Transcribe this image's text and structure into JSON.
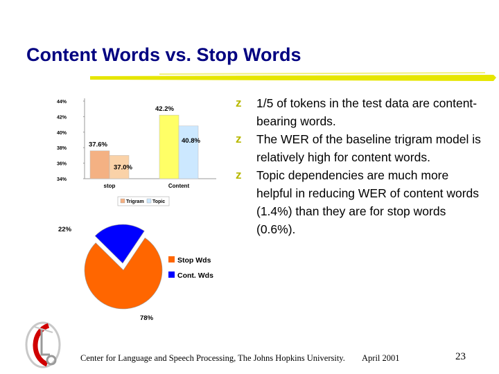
{
  "slide": {
    "title": "Content Words vs. Stop Words",
    "bullets": [
      "1/5 of tokens in the test data are content-bearing words.",
      "The WER of the baseline trigram model is relatively high for content words.",
      "Topic dependencies are much more helpful in reducing WER of content words (1.4%) than they are for stop words (0.6%)."
    ],
    "bullet_glyph": "z",
    "footer": {
      "center": "Center for Language and Speech Processing, The Johns Hopkins University.",
      "date": "April 2001",
      "page": "23"
    },
    "colors": {
      "title": "#000080",
      "accent": "#e6e600",
      "bullet": "#b8b800"
    }
  },
  "chart_data": [
    {
      "type": "bar",
      "categories": [
        "stop",
        "Content"
      ],
      "series": [
        {
          "name": "Trigram",
          "values": [
            37.6,
            42.2
          ],
          "labels": [
            "37.6%",
            "42.2%"
          ],
          "color": "#ffff66"
        },
        {
          "name": "Topic",
          "values": [
            37.0,
            40.8
          ],
          "labels": [
            "37.0%",
            "40.8%"
          ],
          "color": "#cce8ff"
        }
      ],
      "bar_colors": {
        "stop": [
          "#f4b183",
          "#fad2a8"
        ],
        "Content": [
          "#ffff66",
          "#cce8ff"
        ]
      },
      "yticks": [
        "34%",
        "36%",
        "38%",
        "40%",
        "42%",
        "44%"
      ],
      "ylim": [
        34,
        44
      ],
      "grid": false,
      "legend": "bottom"
    },
    {
      "type": "pie",
      "slices": [
        {
          "name": "Stop Wds",
          "value": 78,
          "label": "78%",
          "color": "#ff6600"
        },
        {
          "name": "Cont. Wds",
          "value": 22,
          "label": "22%",
          "color": "#0000ff"
        }
      ],
      "legend": "right"
    }
  ]
}
